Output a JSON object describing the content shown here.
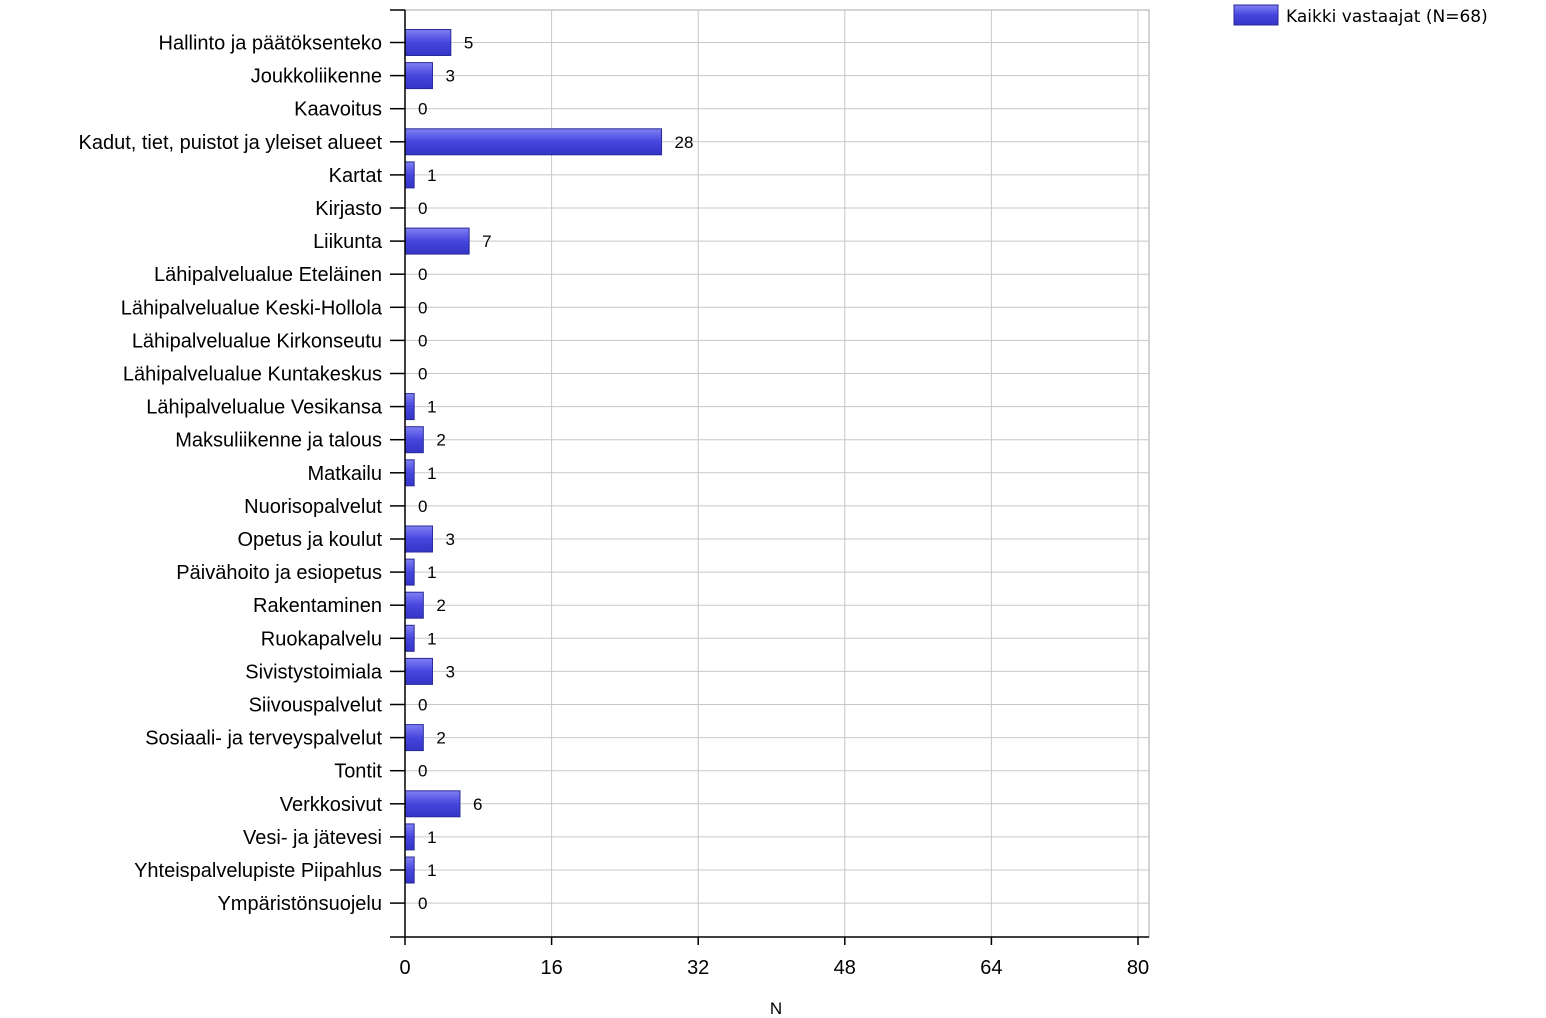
{
  "chart_data": {
    "type": "bar",
    "orientation": "horizontal",
    "categories": [
      "Hallinto ja päätöksenteko",
      "Joukkoliikenne",
      "Kaavoitus",
      "Kadut, tiet, puistot ja yleiset alueet",
      "Kartat",
      "Kirjasto",
      "Liikunta",
      "Lähipalvelualue Eteläinen",
      "Lähipalvelualue Keski-Hollola",
      "Lähipalvelualue Kirkonseutu",
      "Lähipalvelualue Kuntakeskus",
      "Lähipalvelualue Vesikansa",
      "Maksuliikenne ja talous",
      "Matkailu",
      "Nuorisopalvelut",
      "Opetus ja koulut",
      "Päivähoito ja esiopetus",
      "Rakentaminen",
      "Ruokapalvelu",
      "Sivistystoimiala",
      "Siivouspalvelut",
      "Sosiaali- ja terveyspalvelut",
      "Tontit",
      "Verkkosivut",
      "Vesi- ja jätevesi",
      "Yhteispalvelupiste Piipahlus",
      "Ympäristönsuojelu"
    ],
    "series": [
      {
        "name": "Kaikki vastaajat (N=68)",
        "values": [
          5,
          3,
          0,
          28,
          1,
          0,
          7,
          0,
          0,
          0,
          0,
          1,
          2,
          1,
          0,
          3,
          1,
          2,
          1,
          3,
          0,
          2,
          0,
          6,
          1,
          1,
          0
        ],
        "color": "#4b4be0"
      }
    ],
    "xlabel": "N",
    "ylabel": "",
    "xlim": [
      0,
      80
    ],
    "xticks": [
      "0",
      "16",
      "32",
      "48",
      "64",
      "80"
    ],
    "grid": true,
    "legend_position": "top-right"
  }
}
